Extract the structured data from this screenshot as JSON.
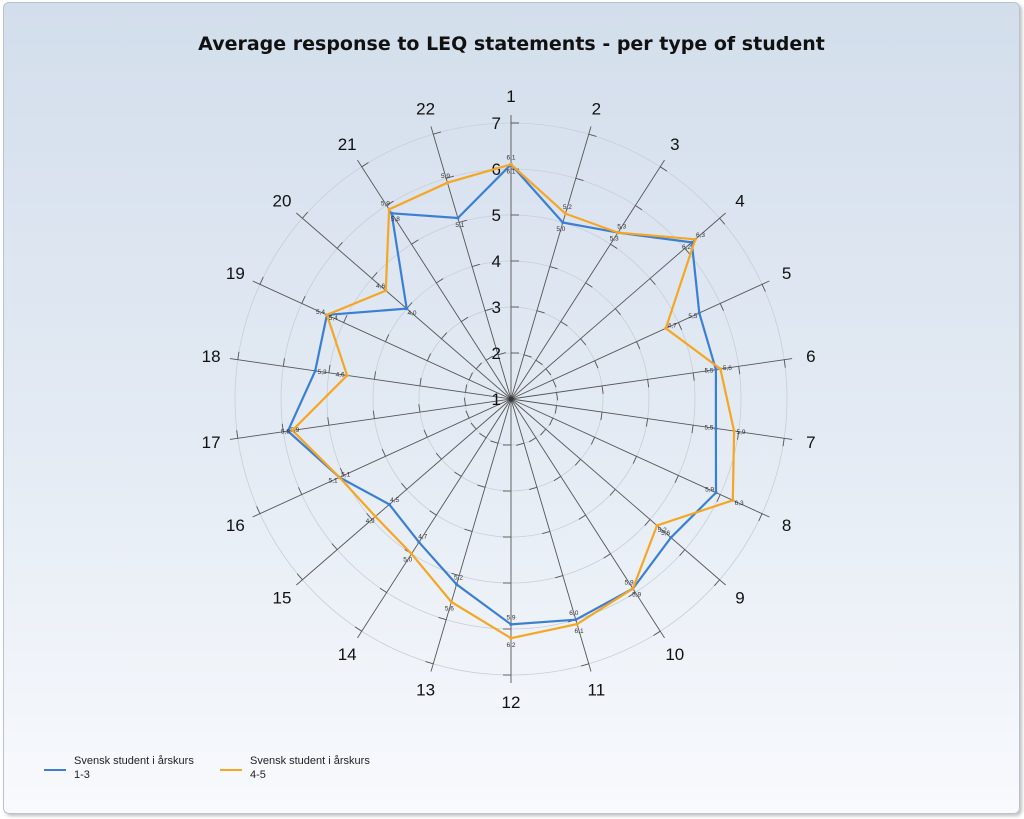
{
  "title": "Average response to LEQ statements - per type of student",
  "chart_data": {
    "type": "radar",
    "title": "Average response to LEQ statements - per type of student",
    "categories": [
      "1",
      "2",
      "3",
      "4",
      "5",
      "6",
      "7",
      "8",
      "9",
      "10",
      "11",
      "12",
      "13",
      "14",
      "15",
      "16",
      "17",
      "18",
      "19",
      "20",
      "21",
      "22"
    ],
    "radial_ticks": [
      "1",
      "2",
      "3",
      "4",
      "5",
      "6",
      "7"
    ],
    "rlim": [
      1,
      7
    ],
    "grid": true,
    "legend_position": "bottom-left",
    "series": [
      {
        "name": "Svensk student i årskurs 1-3",
        "color": "#3b7fd4",
        "values": [
          6.1,
          5.0,
          5.3,
          6.2,
          5.5,
          5.5,
          5.5,
          5.9,
          5.6,
          5.9,
          6.0,
          5.9,
          5.2,
          4.7,
          4.5,
          5.1,
          5.9,
          5.3,
          5.4,
          4.0,
          5.8,
          5.1
        ],
        "labels": [
          "6,1",
          "5,0",
          "5,3",
          "6,2",
          "5,5",
          "5,5",
          "5,5",
          "5,9",
          "5,6",
          "5,9",
          "6,0",
          "5,9",
          "5,2",
          "4,7",
          "4,5",
          "5,1",
          "5,9",
          "5,3",
          "5,4",
          "4,0",
          "5,8",
          "5,1"
        ]
      },
      {
        "name": "Svensk student i årskurs 4-5",
        "color": "#f5a623",
        "values": [
          6.1,
          5.2,
          5.3,
          6.3,
          4.7,
          5.6,
          5.9,
          6.3,
          5.2,
          5.9,
          6.1,
          6.2,
          5.6,
          5.0,
          4.9,
          5.1,
          5.8,
          4.6,
          5.4,
          4.6,
          5.9,
          5.9
        ],
        "labels": [
          "6,1",
          "5,2",
          "5,3",
          "6,3",
          "4,7",
          "5,6",
          "5,9",
          "6,3",
          "5,2",
          "5,9",
          "6,1",
          "6,2",
          "5,6",
          "5,0",
          "4,9",
          "5,1",
          "5,8",
          "4,6",
          "5,4",
          "4,6",
          "5,9",
          "5,9"
        ]
      }
    ]
  },
  "legend": [
    {
      "line1": "Svensk student i årskurs",
      "line2": "1-3",
      "color": "#3b7fd4"
    },
    {
      "line1": "Svensk student i årskurs",
      "line2": "4-5",
      "color": "#f5a623"
    }
  ]
}
